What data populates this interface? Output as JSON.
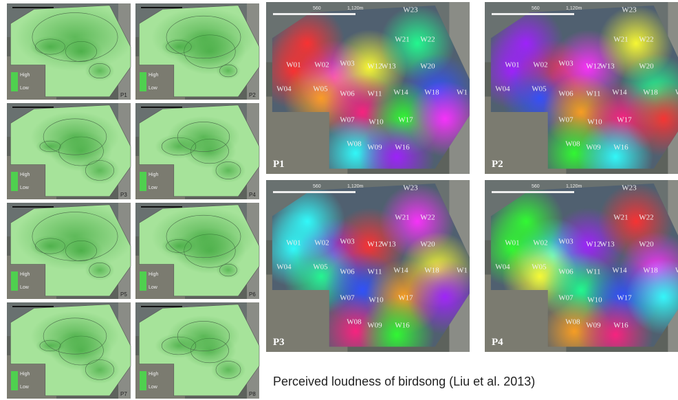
{
  "scale_labels": [
    "560",
    "1,120m"
  ],
  "legend": {
    "high": "High",
    "low": "Low"
  },
  "small_maps": [
    {
      "label": "P1"
    },
    {
      "label": "P2"
    },
    {
      "label": "P3"
    },
    {
      "label": "P4"
    },
    {
      "label": "P5"
    },
    {
      "label": "P6"
    },
    {
      "label": "P7"
    },
    {
      "label": "P8"
    }
  ],
  "large_maps": [
    {
      "label": "P1"
    },
    {
      "label": "P2"
    },
    {
      "label": "P3"
    },
    {
      "label": "P4"
    }
  ],
  "stations": [
    "W23",
    "W21",
    "W22",
    "W01",
    "W02",
    "W03",
    "W12",
    "W13",
    "W20",
    "W04",
    "W05",
    "W06",
    "W11",
    "W14",
    "W18",
    "W1",
    "W07",
    "W10",
    "W17",
    "W08",
    "W09",
    "W16"
  ],
  "caption": "Perceived loudness of birdsong  (Liu et al. 2013)"
}
